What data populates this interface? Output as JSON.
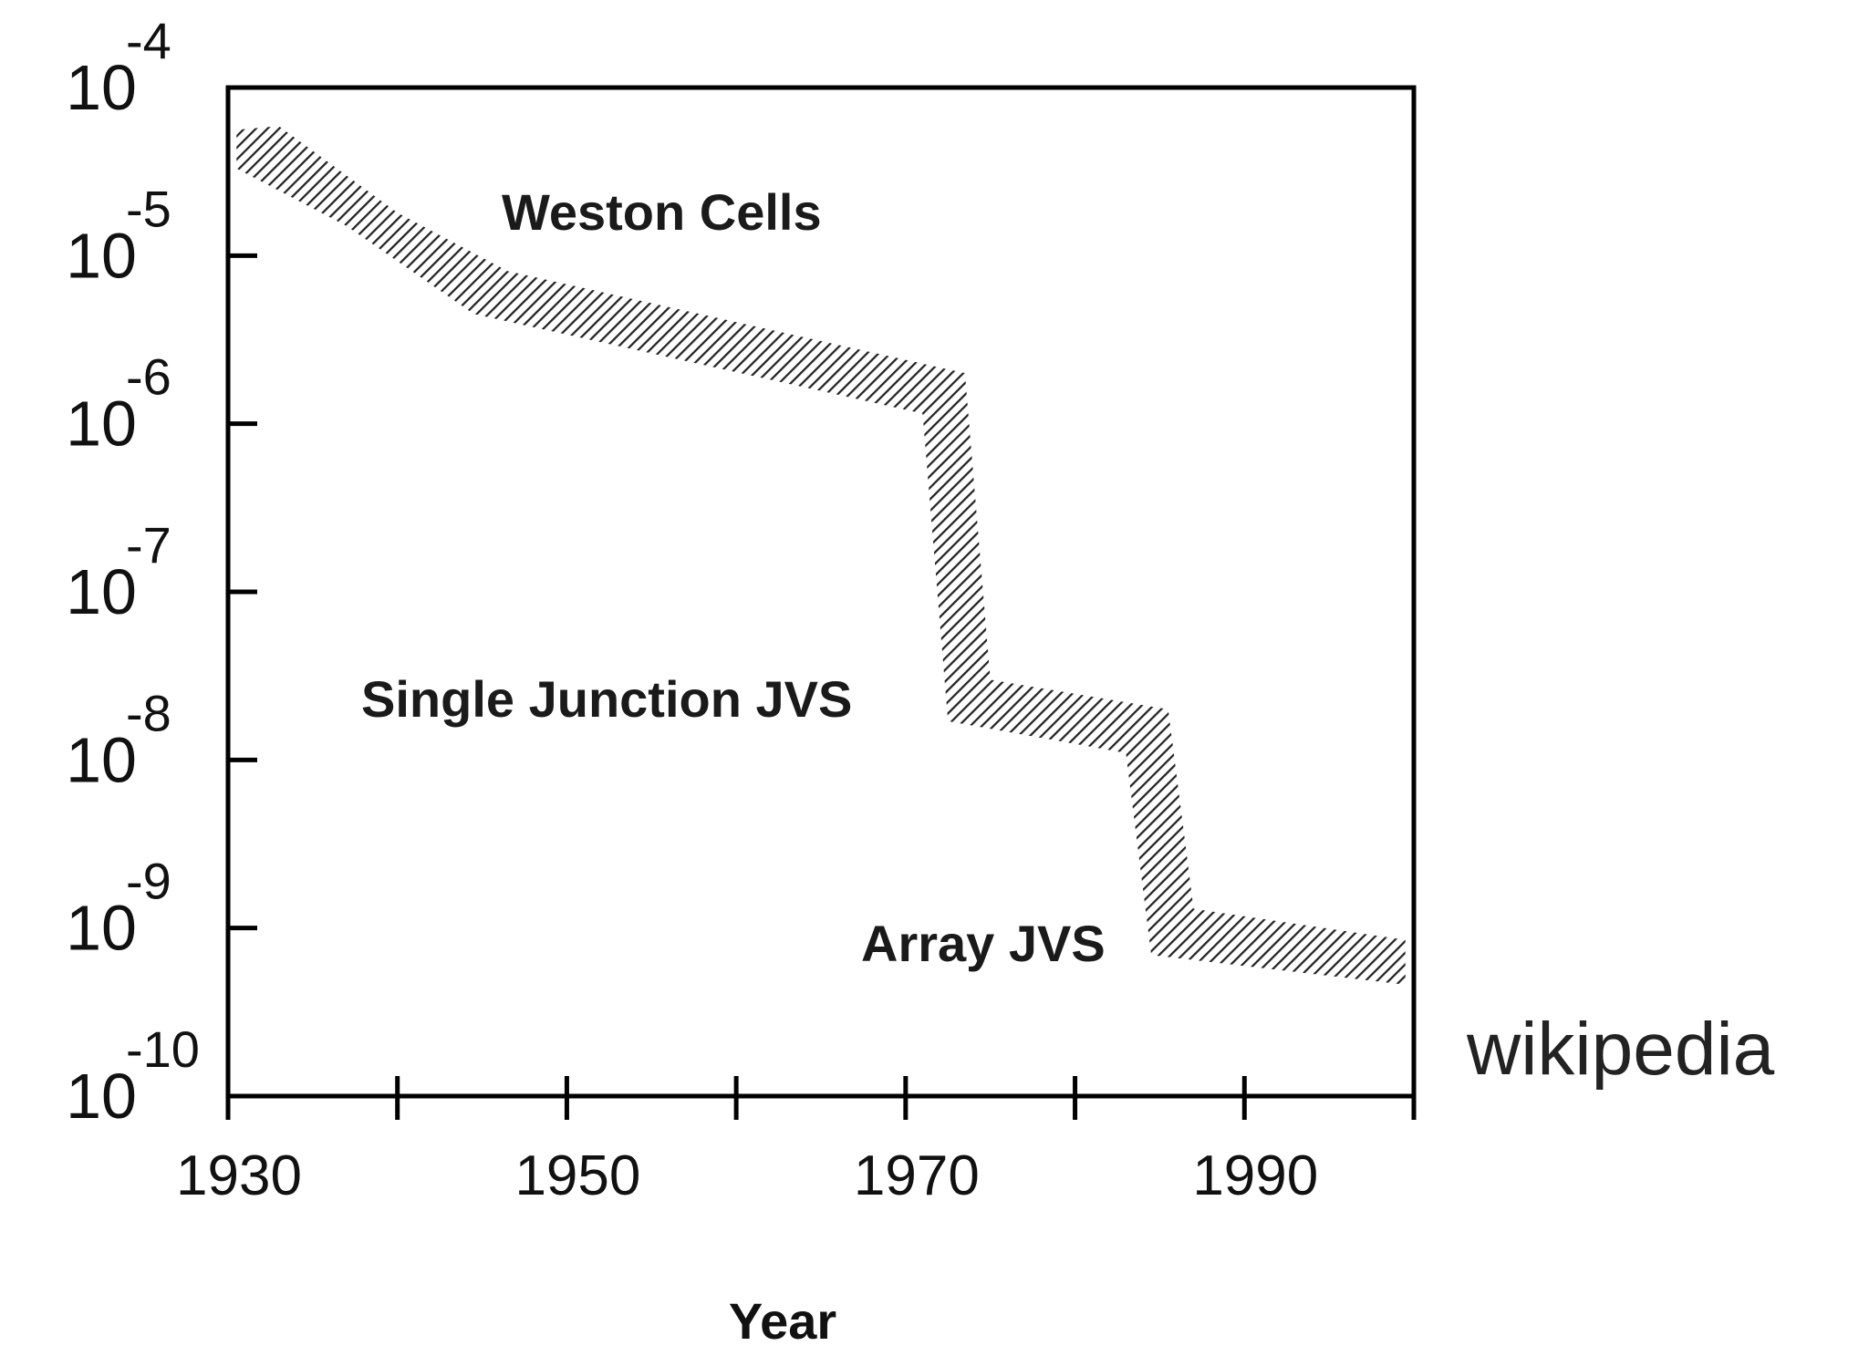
{
  "chart_data": {
    "type": "band",
    "x_label": "Year",
    "xlim": [
      1930,
      2000
    ],
    "xticks": [
      1930,
      1950,
      1970,
      1990
    ],
    "xminor_ticks": [
      1940,
      1960,
      1980,
      2000
    ],
    "ylim": [
      1e-10,
      0.0001
    ],
    "log_y": true,
    "yticks": [
      {
        "value": 1e-10,
        "label": "10",
        "exponent": "-10"
      },
      {
        "value": 1e-09,
        "label": "10",
        "exponent": "-9"
      },
      {
        "value": 1e-08,
        "label": "10",
        "exponent": "-8"
      },
      {
        "value": 1e-07,
        "label": "10",
        "exponent": "-7"
      },
      {
        "value": 1e-06,
        "label": "10",
        "exponent": "-6"
      },
      {
        "value": 1e-05,
        "label": "10",
        "exponent": "-5"
      },
      {
        "value": 0.0001,
        "label": "10",
        "exponent": "-4"
      }
    ],
    "color": "#222222",
    "band": {
      "upper": {
        "x": [
          1930.5,
          1933,
          1940,
          1946.5,
          1973.5,
          1975,
          1985.5,
          1987,
          1999.5
        ],
        "values": [
          5.6e-05,
          5.9e-05,
          1.8e-05,
          8.1e-06,
          2e-06,
          3e-08,
          2e-08,
          1.3e-09,
          8.5e-10
        ]
      },
      "lower": {
        "x": [
          1930.5,
          1937,
          1944.5,
          1971,
          1972.5,
          1983,
          1984.5,
          1999.5
        ],
        "values": [
          3.3e-05,
          1.5e-05,
          4.5e-06,
          1.15e-06,
          1.7e-08,
          1.1e-08,
          6.9e-10,
          4.6e-10
        ]
      }
    },
    "annotations": [
      "Weston Cells",
      "Single Junction JVS",
      "Array JVS"
    ],
    "credit": "wikipedia"
  }
}
